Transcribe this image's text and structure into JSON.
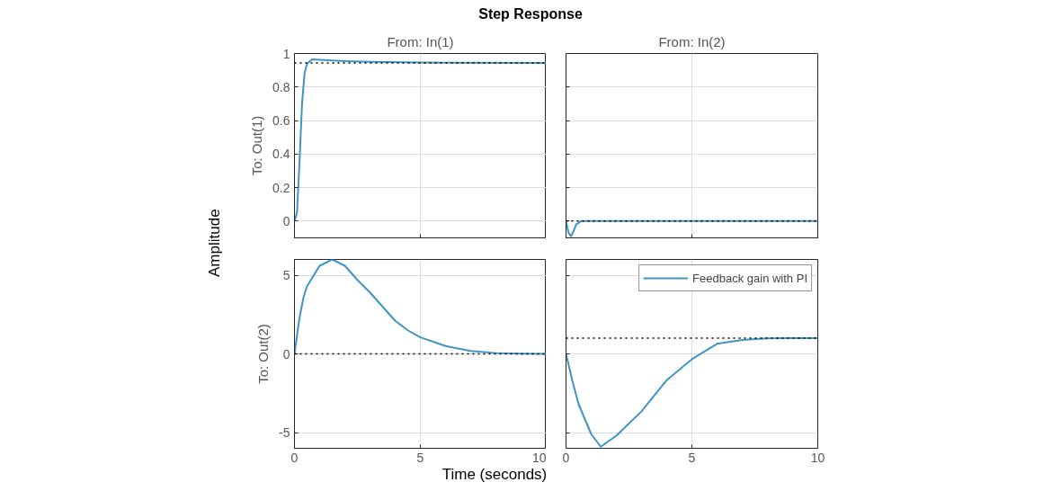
{
  "chart_data": [
    {
      "type": "line",
      "title": "Step Response",
      "subtitle": "From: In(1)",
      "ylabel": "To: Out(1)",
      "annotations": [
        "Amplitude"
      ],
      "xlim": [
        0,
        10
      ],
      "xticks": [
        0,
        5,
        10
      ],
      "ylim": [
        -0.1,
        1
      ],
      "yticks": [
        0,
        0.2,
        0.4,
        0.6,
        0.8,
        1
      ],
      "grid": true,
      "tick_labels": "y",
      "line_style": "solid",
      "ref_lines": [
        {
          "axis": "y",
          "value": 0.944,
          "line_style": "dotted",
          "color": "#000000"
        }
      ],
      "series": [
        {
          "color": "#3e94c3",
          "x": [
            0,
            0.1,
            0.2,
            0.3,
            0.4,
            0.5,
            0.7,
            1,
            2,
            3,
            5,
            7,
            10
          ],
          "values": [
            0,
            0.05,
            0.35,
            0.7,
            0.88,
            0.94,
            0.965,
            0.962,
            0.955,
            0.95,
            0.946,
            0.945,
            0.944
          ]
        }
      ]
    },
    {
      "type": "line",
      "subtitle": "From: In(2)",
      "xlim": [
        0,
        10
      ],
      "xticks": [
        0,
        5,
        10
      ],
      "ylim": [
        -0.1,
        1
      ],
      "yticks": [
        0,
        0.2,
        0.4,
        0.6,
        0.8,
        1
      ],
      "grid": true,
      "tick_labels": false,
      "line_style": "solid",
      "ref_lines": [
        {
          "axis": "y",
          "value": 0,
          "line_style": "dotted",
          "color": "#000000"
        }
      ],
      "series": [
        {
          "color": "#3e94c3",
          "x": [
            0,
            0.1,
            0.2,
            0.3,
            0.4,
            0.6,
            1,
            5,
            10
          ],
          "values": [
            0,
            -0.07,
            -0.09,
            -0.06,
            -0.02,
            0,
            0,
            0,
            0
          ]
        }
      ]
    },
    {
      "type": "line",
      "ylabel": "To: Out(2)",
      "xlabel": "Time (seconds)",
      "xlim": [
        0,
        10
      ],
      "xticks": [
        0,
        5,
        10
      ],
      "ylim": [
        -6,
        6
      ],
      "yticks": [
        -5,
        0,
        5
      ],
      "grid": true,
      "line_style": "solid",
      "ref_lines": [
        {
          "axis": "y",
          "value": 0,
          "line_style": "dotted",
          "color": "#000000"
        }
      ],
      "series": [
        {
          "color": "#3e94c3",
          "x": [
            0,
            0.2,
            0.36,
            0.5,
            1,
            1.5,
            2,
            2.5,
            3,
            3.5,
            4,
            4.5,
            5,
            6,
            7,
            8,
            9,
            10
          ],
          "values": [
            0,
            2.3,
            3.6,
            4.3,
            5.6,
            6.0,
            5.6,
            4.7,
            3.9,
            3.0,
            2.1,
            1.5,
            1.05,
            0.5,
            0.18,
            0.05,
            0.01,
            0
          ]
        }
      ]
    },
    {
      "type": "line",
      "xlim": [
        0,
        10
      ],
      "xticks": [
        0,
        5,
        10
      ],
      "ylim": [
        -6,
        6
      ],
      "yticks": [
        -5,
        0,
        5
      ],
      "grid": true,
      "tick_labels": "x",
      "legend": "top right",
      "line_style": "solid",
      "ref_lines": [
        {
          "axis": "y",
          "value": 1,
          "line_style": "dotted",
          "color": "#000000"
        }
      ],
      "series": [
        {
          "name": "Feedback gain with PI",
          "color": "#3e94c3",
          "x": [
            0,
            0.25,
            0.5,
            1,
            1.38,
            2,
            3,
            4,
            5,
            6,
            7,
            8,
            9,
            10
          ],
          "values": [
            0,
            -1.7,
            -3.2,
            -5.1,
            -5.9,
            -5.2,
            -3.65,
            -1.67,
            -0.34,
            0.64,
            0.89,
            0.98,
            1.0,
            1.0
          ]
        }
      ]
    }
  ]
}
